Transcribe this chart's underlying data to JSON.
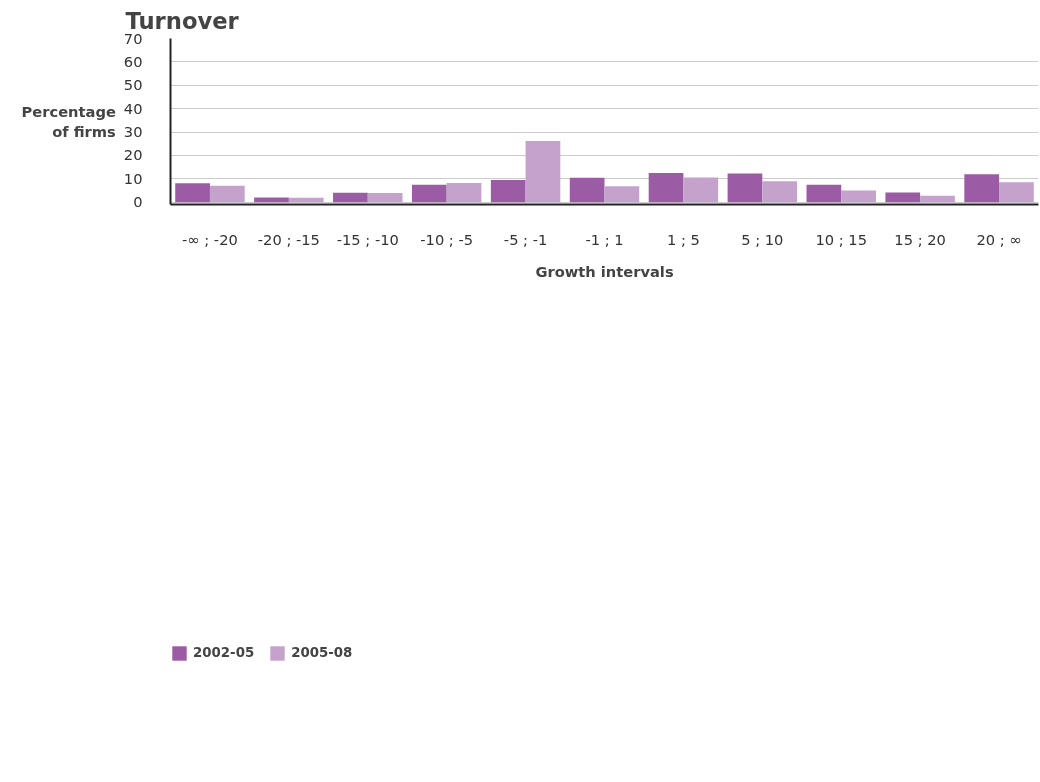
{
  "chart_data": {
    "type": "bar",
    "title": "Turnover",
    "xlabel": "Growth intervals",
    "ylabel": "Percentage of firms",
    "categories": [
      "-∞ ; -20",
      "-20 ; -15",
      "-15 ; -10",
      "-10 ; -5",
      "-5 ; -1",
      "-1 ; 1",
      "1 ; 5",
      "5 ; 10",
      "10 ; 15",
      "15 ; 20",
      "20 ; ∞"
    ],
    "series": [
      {
        "name": "2002-05",
        "color": "#9b5ba5",
        "values": [
          8.1,
          2.0,
          4.0,
          7.4,
          9.5,
          10.4,
          12.5,
          12.3,
          7.5,
          4.1,
          11.9
        ]
      },
      {
        "name": "2005-08",
        "color": "#c4a2cc",
        "values": [
          7.0,
          1.9,
          3.9,
          8.2,
          26.2,
          6.8,
          10.5,
          8.9,
          5.0,
          2.7,
          8.5
        ]
      }
    ],
    "ylim": [
      -1,
      70
    ],
    "yticks": [
      0,
      10,
      20,
      30,
      40,
      50,
      60,
      70
    ],
    "grid": "y",
    "legend": "bottom left"
  }
}
